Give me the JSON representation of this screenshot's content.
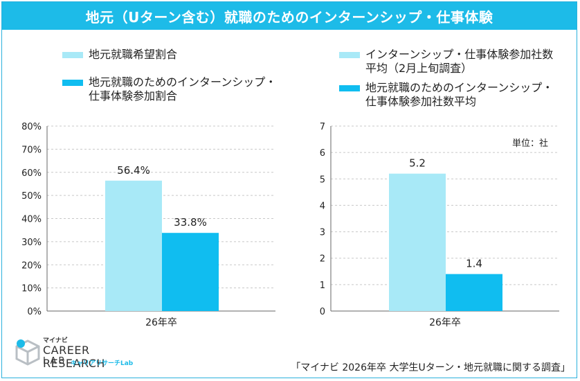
{
  "title": "地元（Uターン含む）就職のためのインターンシップ・仕事体験",
  "colors": {
    "light": "#a8e9f7",
    "dark": "#10bdf0",
    "title_bg": "#1dbbe8"
  },
  "left_legend": [
    "地元就職希望割合",
    "地元就職のためのインターンシップ・\n仕事体験参加割合"
  ],
  "right_legend": [
    "インターンシップ・仕事体験参加社数\n平均（2月上旬調査）",
    "地元就職のためのインターンシップ・\n仕事体験参加社数平均"
  ],
  "unit_note": "単位：社",
  "source": "「マイナビ 2026年卒 大学生Uターン・地元就職に関する調査」",
  "logo": {
    "small": "マイナビ",
    "main": "CAREER RESEARCH",
    "lab": "LAB",
    "jp": "キャリアリサーチLab"
  },
  "chart_data": [
    {
      "type": "bar",
      "categories": [
        "26年卒"
      ],
      "series": [
        {
          "name": "地元就職希望割合",
          "values": [
            56.4
          ],
          "labels": [
            "56.4%"
          ]
        },
        {
          "name": "地元就職のためのインターンシップ・仕事体験参加割合",
          "values": [
            33.8
          ],
          "labels": [
            "33.8%"
          ]
        }
      ],
      "ylim": [
        0,
        80
      ],
      "yticks": [
        "0%",
        "10%",
        "20%",
        "30%",
        "40%",
        "50%",
        "60%",
        "70%",
        "80%"
      ],
      "grid": true
    },
    {
      "type": "bar",
      "categories": [
        "26年卒"
      ],
      "series": [
        {
          "name": "インターンシップ・仕事体験参加社数平均（2月上旬調査）",
          "values": [
            5.2
          ],
          "labels": [
            "5.2"
          ]
        },
        {
          "name": "地元就職のためのインターンシップ・仕事体験参加社数平均",
          "values": [
            1.4
          ],
          "labels": [
            "1.4"
          ]
        }
      ],
      "ylim": [
        0,
        7
      ],
      "yticks": [
        "0",
        "1",
        "2",
        "3",
        "4",
        "5",
        "6",
        "7"
      ],
      "grid": true
    }
  ]
}
